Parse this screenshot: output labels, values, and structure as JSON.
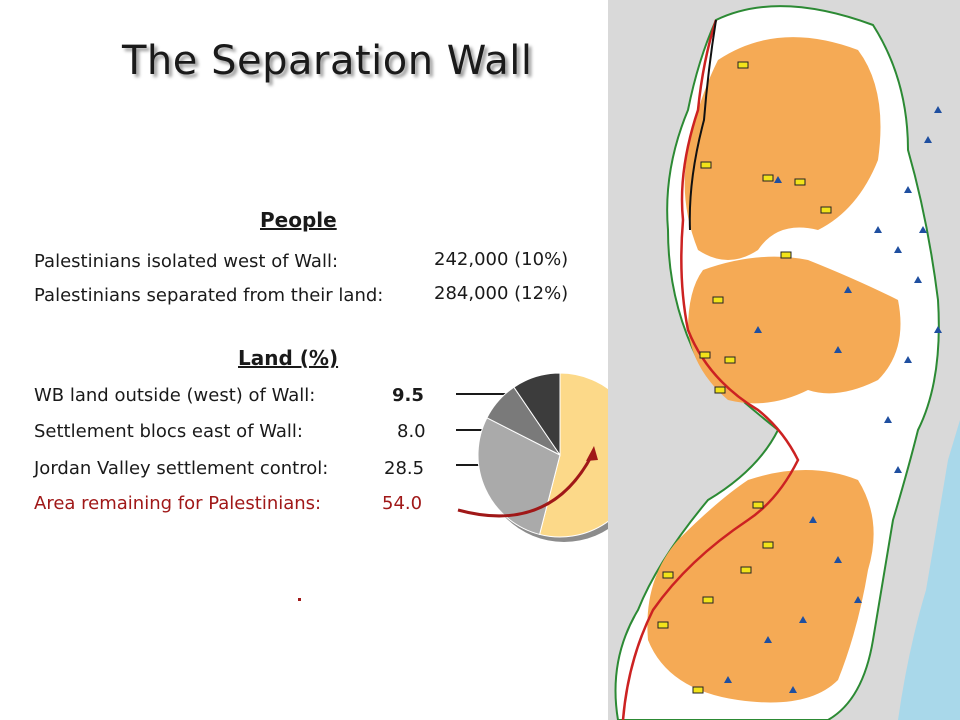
{
  "slide": {
    "title": "The Separation Wall"
  },
  "people": {
    "heading": "People",
    "rows": [
      {
        "label": "Palestinians isolated west of Wall:",
        "value": "242,000 (10%)"
      },
      {
        "label": "Palestinians separated from their land:",
        "value": "284,000 (12%)"
      }
    ]
  },
  "land": {
    "heading": "Land (%)",
    "rows": [
      {
        "label": "WB land outside (west) of Wall:",
        "value": "9.5"
      },
      {
        "label": "Settlement blocs east of Wall:",
        "value": "8.0"
      },
      {
        "label": "Jordan Valley settlement control:",
        "value": "28.5"
      },
      {
        "label": "Area remaining for Palestinians:",
        "value": "54.0"
      }
    ]
  },
  "footnote_dot": ".",
  "colors": {
    "highlight_red": "#a01818",
    "slice_remaining": "#fcd989",
    "slice_jordan": "#aaaaaa",
    "slice_blocs": "#7a7a7a",
    "slice_west": "#3c3c3c",
    "map_land": "#f5aa55",
    "map_background": "#d9d9d9",
    "map_sea": "#a9d8ea"
  },
  "chart_data": {
    "type": "pie",
    "categories": [
      "Area remaining for Palestinians",
      "Jordan Valley settlement control",
      "Settlement blocs east of Wall",
      "WB land outside (west) of Wall"
    ],
    "values": [
      54.0,
      28.5,
      8.0,
      9.5
    ],
    "start": "12 o'clock, clockwise",
    "legend": "labels left of pie with leader lines"
  }
}
